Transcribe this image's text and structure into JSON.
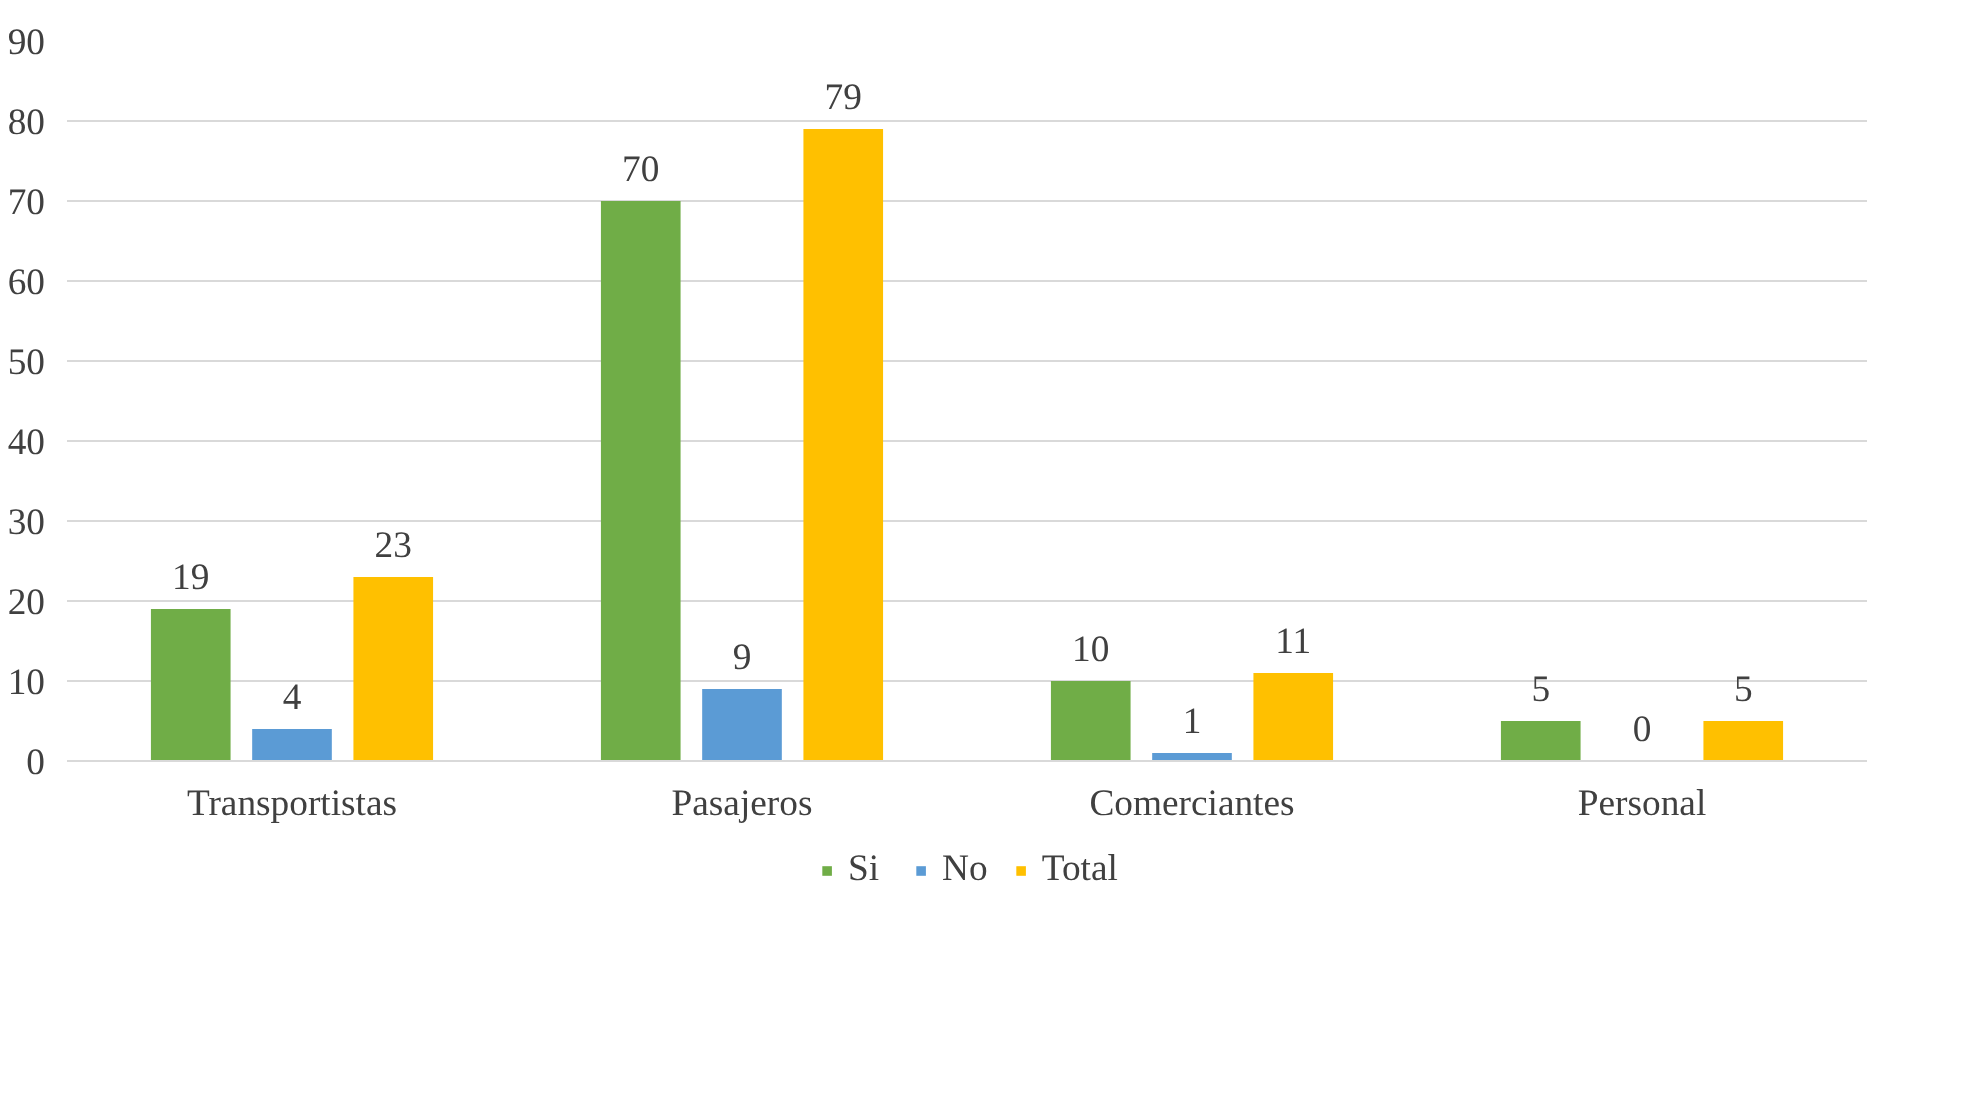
{
  "chart_data": {
    "type": "bar",
    "categories": [
      "Transportistas",
      "Pasajeros",
      "Comerciantes",
      "Personal"
    ],
    "series": [
      {
        "name": "Si",
        "color": "#70ad47",
        "values": [
          19,
          70,
          10,
          5
        ]
      },
      {
        "name": "No",
        "color": "#5b9bd5",
        "values": [
          4,
          9,
          1,
          0
        ]
      },
      {
        "name": "Total",
        "color": "#ffc000",
        "values": [
          23,
          79,
          11,
          5
        ]
      }
    ],
    "ylim": [
      0,
      90
    ],
    "yticks": [
      0,
      10,
      20,
      30,
      40,
      50,
      60,
      70,
      80,
      90
    ],
    "grid": "y",
    "legend": "bottom",
    "data_labels": true
  }
}
